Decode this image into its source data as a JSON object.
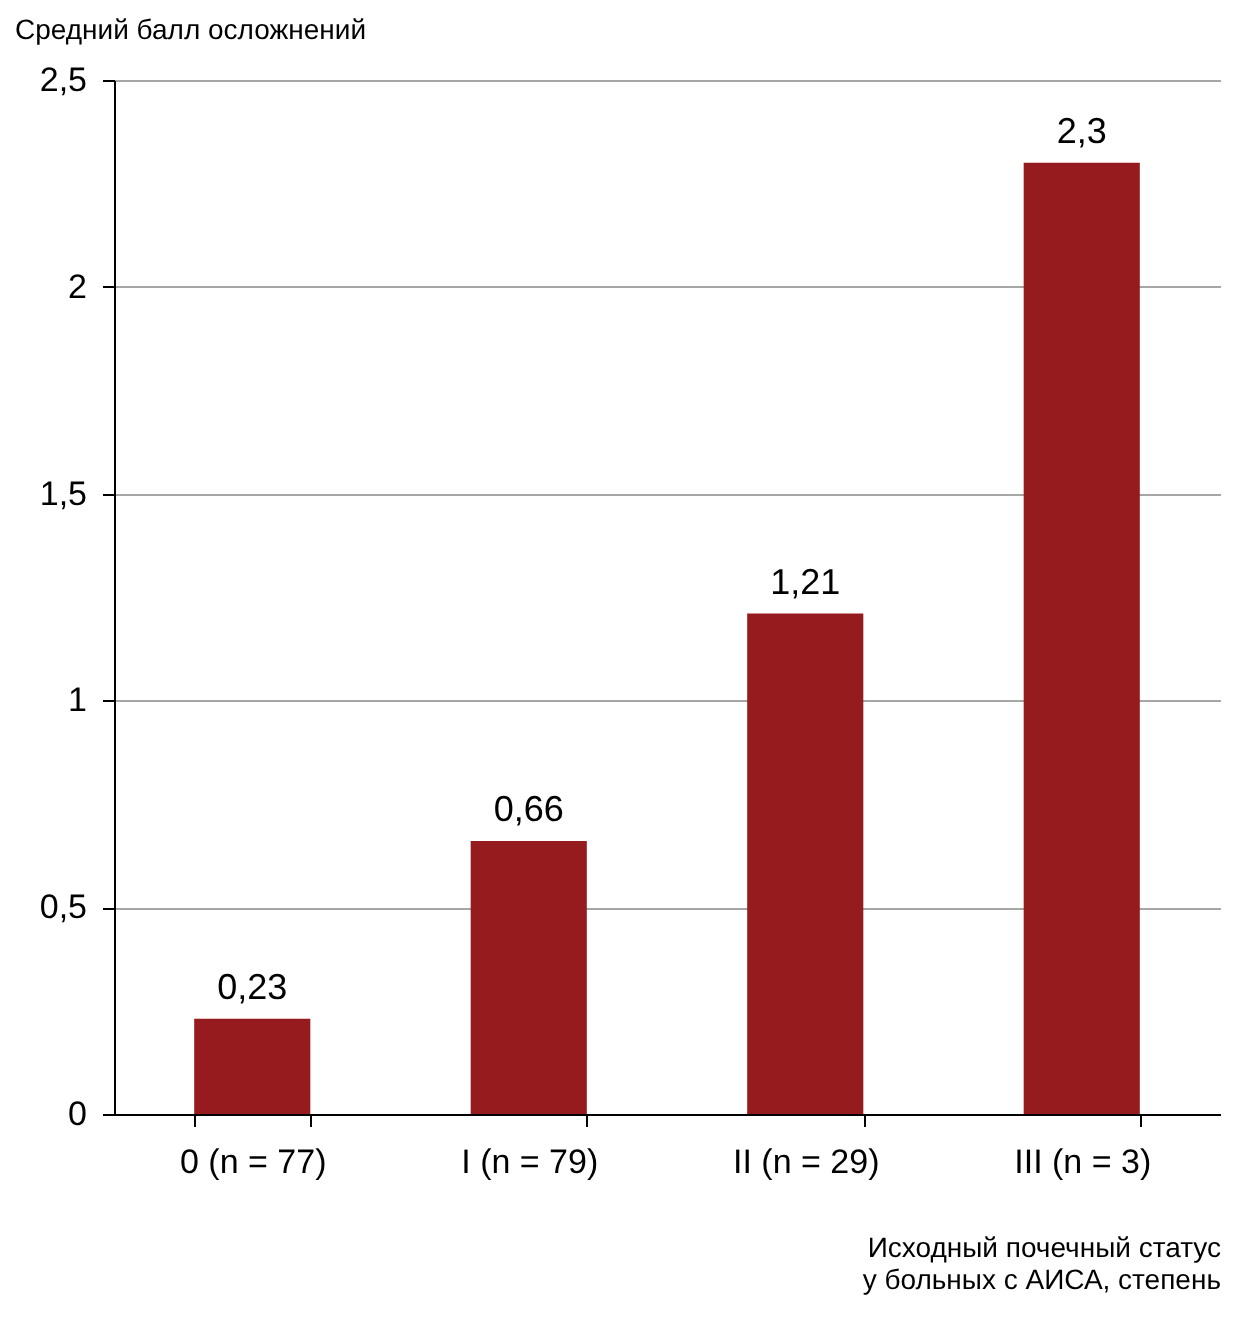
{
  "chart_data": {
    "type": "bar",
    "ylabel": "Средний балл осложнений",
    "xlabel": "Исходный почечный статус\nу больных с АИСА, степень",
    "categories": [
      "0 (n = 77)",
      "I (n = 79)",
      "II (n = 29)",
      "III (n = 3)"
    ],
    "values": [
      0.23,
      0.66,
      1.21,
      2.3
    ],
    "value_labels": [
      "0,23",
      "0,66",
      "1,21",
      "2,3"
    ],
    "color": "#961b1f",
    "ylim": [
      0,
      2.5
    ],
    "yticks": [
      {
        "value": 0,
        "label": "0"
      },
      {
        "value": 0.5,
        "label": "0,5"
      },
      {
        "value": 1,
        "label": "1"
      },
      {
        "value": 1.5,
        "label": "1,5"
      },
      {
        "value": 2,
        "label": "2"
      },
      {
        "value": 2.5,
        "label": "2,5"
      }
    ],
    "grid": "y"
  }
}
